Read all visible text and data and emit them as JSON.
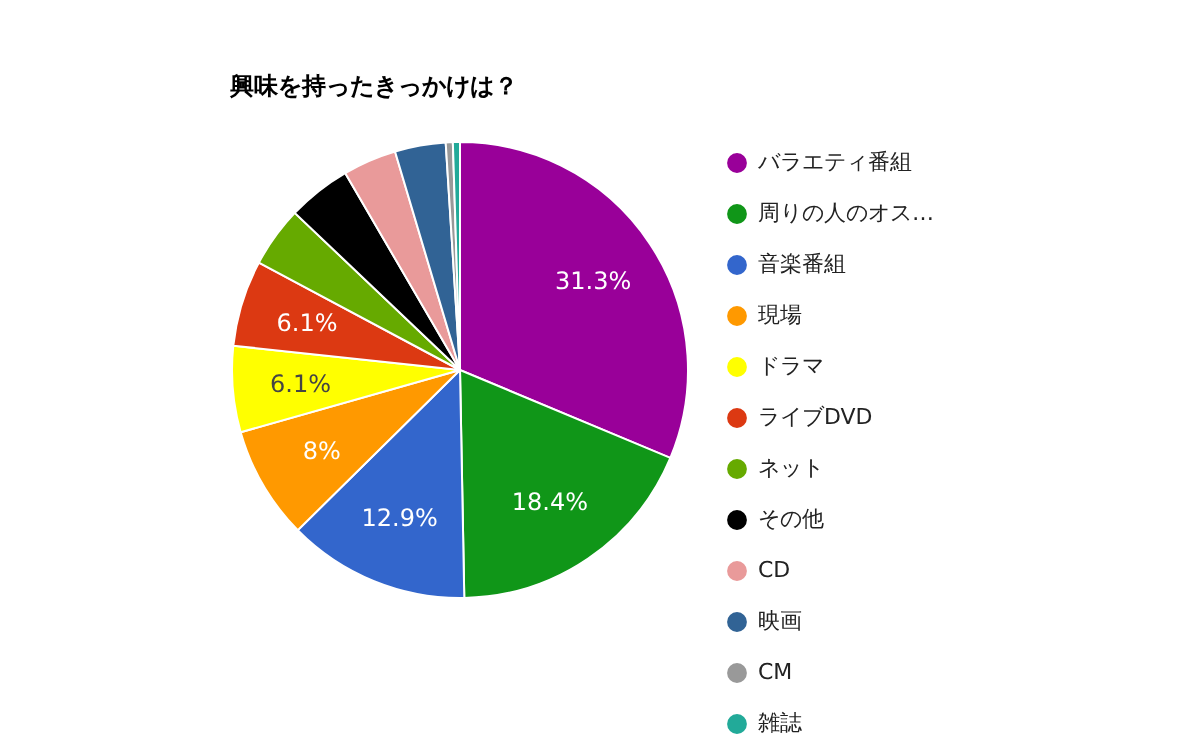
{
  "chart_data": {
    "type": "pie",
    "title": "興味を持ったきっかけは？",
    "categories": [
      "バラエティ番組",
      "周りの人のオス…",
      "音楽番組",
      "現場",
      "ドラマ",
      "ライブDVD",
      "ネット",
      "その他",
      "CD",
      "映画",
      "CM",
      "雑誌"
    ],
    "values": [
      31.3,
      18.4,
      12.9,
      8,
      6.1,
      6.1,
      4.3,
      4.5,
      3.8,
      3.6,
      0.5,
      0.5
    ],
    "value_labels": [
      "31.3%",
      "18.4%",
      "12.9%",
      "8%",
      "6.1%",
      "6.1%",
      null,
      null,
      null,
      null,
      null,
      null
    ],
    "colors": [
      "#990099",
      "#109618",
      "#3366cc",
      "#ff9900",
      "#ffff00",
      "#dc3912",
      "#66aa00",
      "#000000",
      "#e99a9a",
      "#316395",
      "#999999",
      "#22aa99"
    ],
    "legend": "right"
  }
}
